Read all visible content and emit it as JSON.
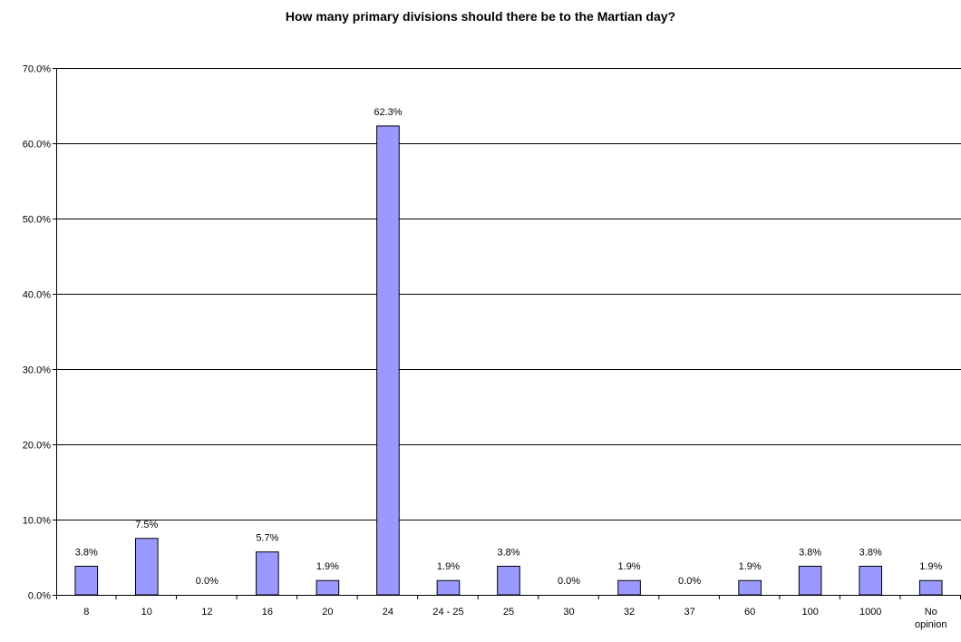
{
  "chart_data": {
    "type": "bar",
    "title": "How many primary divisions should there be to the Martian day?",
    "xlabel": "",
    "ylabel": "",
    "categories": [
      "8",
      "10",
      "12",
      "16",
      "20",
      "24",
      "24 - 25",
      "25",
      "30",
      "32",
      "37",
      "60",
      "100",
      "1000",
      "No opinion"
    ],
    "values": [
      3.8,
      7.5,
      0.0,
      5.7,
      1.9,
      62.3,
      1.9,
      3.8,
      0.0,
      1.9,
      0.0,
      1.9,
      3.8,
      3.8,
      1.9
    ],
    "data_labels": [
      "3.8%",
      "7.5%",
      "0.0%",
      "5.7%",
      "1.9%",
      "62.3%",
      "1.9%",
      "3.8%",
      "0.0%",
      "1.9%",
      "0.0%",
      "1.9%",
      "3.8%",
      "3.8%",
      "1.9%"
    ],
    "ylim": [
      0,
      70
    ],
    "yticks": [
      0,
      10,
      20,
      30,
      40,
      50,
      60,
      70
    ],
    "ytick_labels": [
      "0.0%",
      "10.0%",
      "20.0%",
      "30.0%",
      "40.0%",
      "50.0%",
      "60.0%",
      "70.0%"
    ],
    "grid": true,
    "legend": "none",
    "bar_color": "#9999FF"
  }
}
